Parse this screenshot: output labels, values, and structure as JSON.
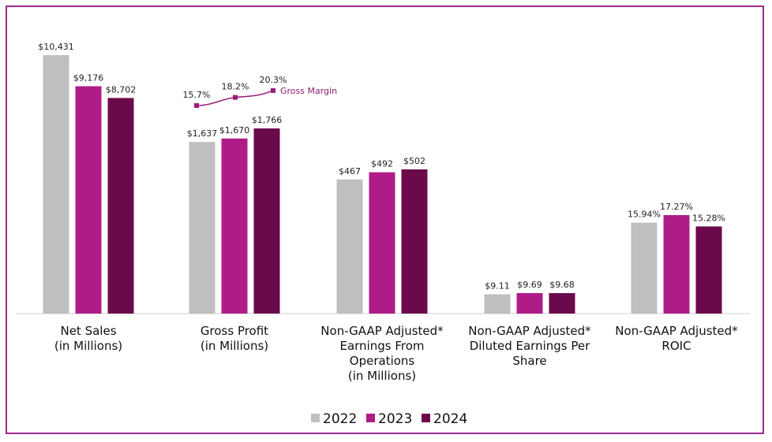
{
  "chart_data": {
    "type": "bar",
    "series": [
      {
        "name": "2022",
        "color": "#bfbfbf",
        "values": [
          10431,
          1637,
          467,
          9.11,
          15.94
        ],
        "labels": [
          "$10,431",
          "$1,637",
          "$467",
          "$9.11",
          "15.94%"
        ]
      },
      {
        "name": "2023",
        "color": "#b01c87",
        "values": [
          9176,
          1670,
          492,
          9.69,
          17.27
        ],
        "labels": [
          "$9,176",
          "$1,670",
          "$492",
          "$9.69",
          "17.27%"
        ]
      },
      {
        "name": "2024",
        "color": "#6b0a4a",
        "values": [
          8702,
          1766,
          502,
          9.68,
          15.28
        ],
        "labels": [
          "$8,702",
          "$1,766",
          "$502",
          "$9.68",
          "15.28%"
        ]
      }
    ],
    "categories": [
      [
        "Net Sales",
        "(in Millions)"
      ],
      [
        "Gross Profit",
        "(in Millions)"
      ],
      [
        "Non-GAAP Adjusted*",
        "Earnings From",
        "Operations",
        "(in Millions)"
      ],
      [
        "Non-GAAP Adjusted*",
        "Diluted Earnings Per",
        "Share"
      ],
      [
        "Non-GAAP Adjusted*",
        "ROIC"
      ]
    ],
    "gross_margin": {
      "name": "Gross Margin",
      "values": [
        15.7,
        18.2,
        20.3
      ],
      "labels": [
        "15.7%",
        "18.2%",
        "20.3%"
      ],
      "color": "#9b1b7a"
    },
    "legend": [
      "2022",
      "2023",
      "2024"
    ],
    "legend_position": "bottom"
  }
}
